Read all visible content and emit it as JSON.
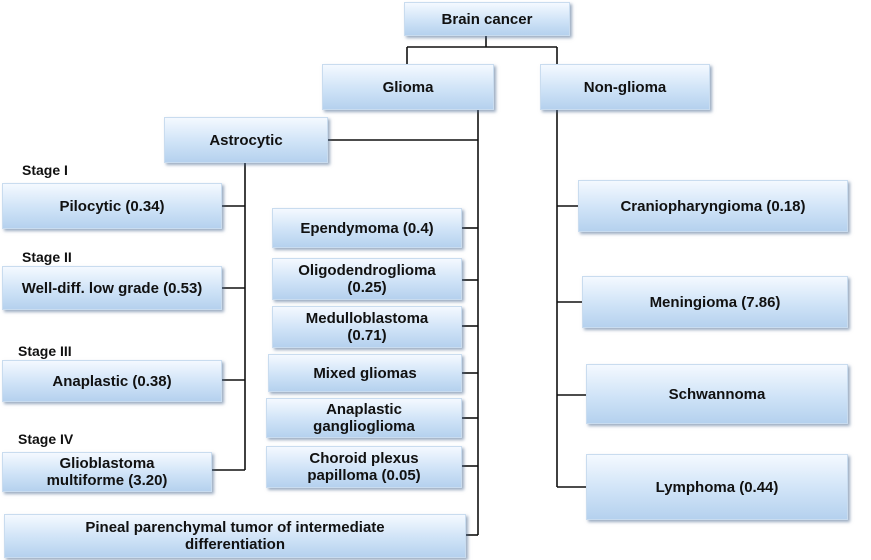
{
  "nodes": {
    "root": "Brain cancer",
    "glioma": "Glioma",
    "non_glioma": "Non-glioma",
    "astrocytic": "Astrocytic",
    "pilocytic": "Pilocytic (0.34)",
    "well_diff": "Well-diff. low grade (0.53)",
    "anaplastic": "Anaplastic (0.38)",
    "glioblastoma": "Glioblastoma multiforme (3.20)",
    "ependymoma": "Ependymoma (0.4)",
    "oligodendroglioma": "Oligodendroglioma (0.25)",
    "medulloblastoma": "Medulloblastoma (0.71)",
    "mixed_gliomas": "Mixed gliomas",
    "anaplastic_ganglioglioma": "Anaplastic ganglioglioma",
    "choroid_plexus": "Choroid plexus papilloma (0.05)",
    "pineal": "Pineal parenchymal tumor of intermediate differentiation",
    "craniopharyngioma": "Craniopharyngioma (0.18)",
    "meningioma": "Meningioma (7.86)",
    "schwannoma": "Schwannoma",
    "lymphoma": "Lymphoma (0.44)"
  },
  "stages": [
    "Stage I",
    "Stage II",
    "Stage III",
    "Stage IV"
  ]
}
